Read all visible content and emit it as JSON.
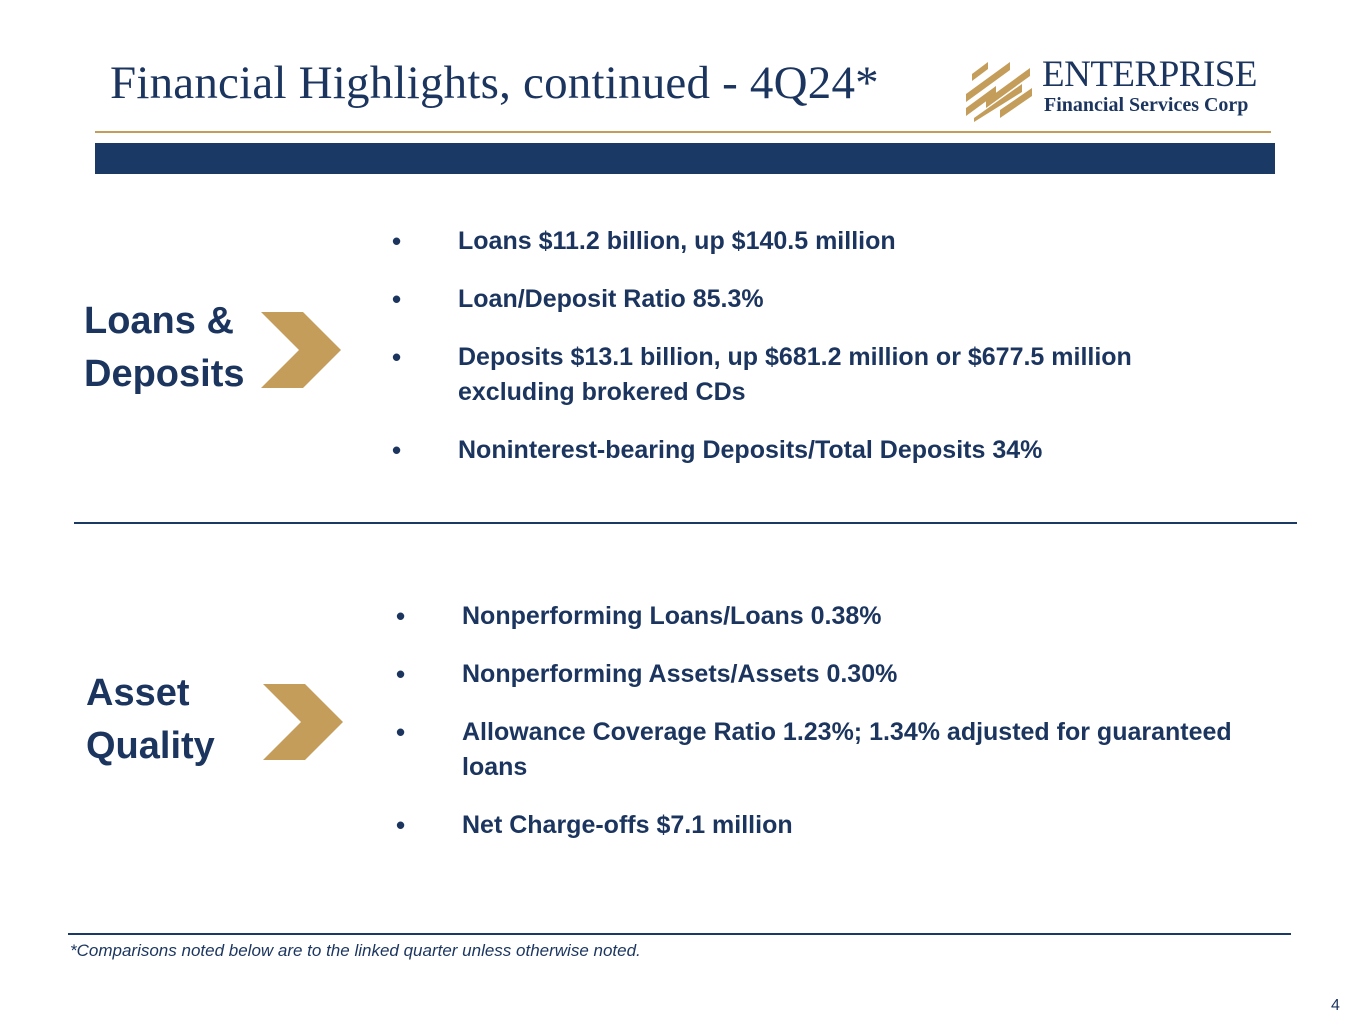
{
  "header": {
    "title": "Financial Highlights, continued - 4Q24*",
    "logo": {
      "name": "ENTERPRISE",
      "subtitle": "Financial Services Corp"
    }
  },
  "colors": {
    "navy": "#1b355f",
    "gold": "#c49d5b"
  },
  "sections": [
    {
      "label_lines": [
        "Loans &",
        "Deposits"
      ],
      "bullets": [
        "Loans $11.2 billion, up $140.5 million",
        "Loan/Deposit Ratio 85.3%",
        "Deposits $13.1 billion, up $681.2 million or $677.5 million excluding brokered CDs",
        "Noninterest-bearing Deposits/Total Deposits 34%"
      ]
    },
    {
      "label_lines": [
        "Asset",
        "Quality"
      ],
      "bullets": [
        "Nonperforming Loans/Loans 0.38%",
        "Nonperforming Assets/Assets 0.30%",
        "Allowance Coverage Ratio 1.23%; 1.34% adjusted for guaranteed loans",
        "Net Charge-offs $7.1 million"
      ]
    }
  ],
  "bullet_char": "•",
  "footnote": "*Comparisons noted below are to the linked quarter unless otherwise noted.",
  "page_number": "4"
}
